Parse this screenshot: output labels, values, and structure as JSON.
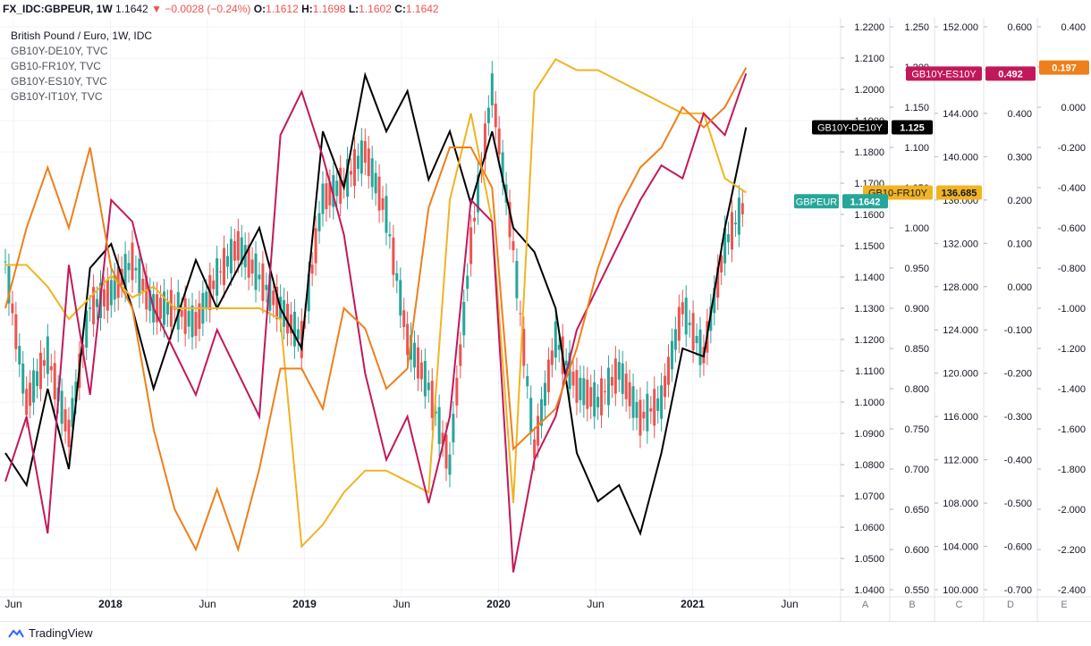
{
  "header": {
    "symbol": "FX_IDC:GBPEUR, 1W",
    "last": "1.1642",
    "change": "−0.0028 (−0.24%)",
    "o_label": "O:",
    "o_value": "1.1612",
    "h_label": "H:",
    "h_value": "1.1698",
    "l_label": "L:",
    "l_value": "1.1602",
    "c_label": "C:",
    "c_value": "1.1642"
  },
  "legend": [
    "British Pound / Euro, 1W, IDC",
    "GB10Y-DE10Y, TVC",
    "GB10-FR10Y, TVC",
    "GB10Y-ES10Y, TVC",
    "GB10Y-IT10Y, TVC"
  ],
  "footer": {
    "brand": "TradingView"
  },
  "colors": {
    "up": "#26a69a",
    "down": "#ef5350",
    "de": "#000000",
    "fr": "#f0b423",
    "es": "#c2185b",
    "it": "#ef7f1a",
    "grid": "#f0f3fa"
  },
  "chart_data": {
    "type": "line",
    "x_axis_labels": [
      "Jun",
      "2018",
      "Jun",
      "2019",
      "Jun",
      "2020",
      "Jun",
      "2021",
      "Jun"
    ],
    "axes": [
      {
        "id": "A",
        "ticks": [
          "1.2200",
          "1.2100",
          "1.2000",
          "1.1900",
          "1.1800",
          "1.1700",
          "1.1600",
          "1.1500",
          "1.1400",
          "1.1300",
          "1.1200",
          "1.1100",
          "1.1000",
          "1.0900",
          "1.0800",
          "1.0700",
          "1.0600",
          "1.0500",
          "1.0400"
        ],
        "range": [
          1.04,
          1.22
        ]
      },
      {
        "id": "B",
        "ticks": [
          "1.250",
          "1.200",
          "1.150",
          "1.100",
          "1.050",
          "1.000",
          "0.950",
          "0.900",
          "0.850",
          "0.800",
          "0.750",
          "0.700",
          "0.650",
          "0.600",
          "0.550"
        ],
        "range": [
          0.55,
          1.25
        ]
      },
      {
        "id": "C",
        "ticks": [
          "152.000",
          "148.000",
          "144.000",
          "140.000",
          "136.000",
          "132.000",
          "128.000",
          "124.000",
          "120.000",
          "116.000",
          "112.000",
          "108.000",
          "104.000",
          "100.000"
        ],
        "range": [
          100.0,
          152.0
        ]
      },
      {
        "id": "D",
        "ticks": [
          "0.600",
          "0.500",
          "0.400",
          "0.300",
          "0.200",
          "0.100",
          "0.000",
          "-0.100",
          "-0.200",
          "-0.300",
          "-0.400",
          "-0.500",
          "-0.600",
          "-0.700"
        ],
        "range": [
          -0.7,
          0.6
        ]
      },
      {
        "id": "E",
        "ticks": [
          "0.400",
          "0.200",
          "0.000",
          "-0.200",
          "-0.400",
          "-0.600",
          "-0.800",
          "-1.000",
          "-1.200",
          "-1.400",
          "-1.600",
          "-1.800",
          "-2.000",
          "-2.200",
          "-2.400"
        ],
        "range": [
          -2.4,
          0.4
        ]
      }
    ],
    "price_tags": [
      {
        "label": "GB10Y-ES10Y",
        "value": "0.492",
        "color": "#c2185b",
        "axis": "D",
        "y": 0.492
      },
      {
        "label": "",
        "value": "0.197",
        "color": "#ef7f1a",
        "axis": "E",
        "y": 0.197
      },
      {
        "label": "GB10Y-DE10Y",
        "value": "1.125",
        "color": "#000000",
        "axis": "B",
        "y": 1.125
      },
      {
        "label": "GB10-FR10Y",
        "value": "136.685",
        "color": "#f0b423",
        "axis": "C",
        "y": 136.685
      },
      {
        "label": "GBPEUR",
        "value": "1.1642",
        "color": "#26a69a",
        "axis": "A",
        "y": 1.1642
      }
    ],
    "series": [
      {
        "name": "GB10Y-DE10Y",
        "axis": "B",
        "color": "#000000",
        "x": [
          0,
          6,
          12,
          18,
          24,
          30,
          36,
          42,
          48,
          54,
          60,
          66,
          72,
          78,
          84,
          90,
          96,
          102,
          108,
          114,
          120,
          126,
          132,
          138,
          144,
          150,
          156,
          162,
          168,
          174,
          180,
          186,
          192,
          198,
          204,
          210
        ],
        "y": [
          0.72,
          0.68,
          0.8,
          0.7,
          0.95,
          0.98,
          0.9,
          0.8,
          0.88,
          0.96,
          0.9,
          0.95,
          1.0,
          0.9,
          0.85,
          1.12,
          1.05,
          1.19,
          1.12,
          1.17,
          1.06,
          1.12,
          1.03,
          1.12,
          1.0,
          0.97,
          0.9,
          0.72,
          0.66,
          0.68,
          0.62,
          0.72,
          0.85,
          0.84,
          1.0,
          1.125
        ]
      },
      {
        "name": "GB10-FR10Y",
        "axis": "C",
        "color": "#f0b423",
        "x": [
          0,
          6,
          12,
          18,
          24,
          30,
          36,
          42,
          48,
          54,
          60,
          66,
          72,
          78,
          84,
          90,
          96,
          102,
          108,
          114,
          120,
          126,
          132,
          138,
          144,
          150,
          156,
          162,
          168,
          174,
          180,
          186,
          192,
          198,
          204,
          210
        ],
        "y": [
          130,
          130,
          128,
          125,
          127,
          129,
          127,
          128,
          126,
          126,
          126,
          126,
          126,
          125,
          104,
          106,
          109,
          111,
          111,
          110,
          109,
          136,
          144,
          134,
          108,
          146,
          149,
          148,
          148,
          147,
          146,
          145,
          144,
          144,
          138,
          136.685
        ]
      },
      {
        "name": "GB10Y-ES10Y",
        "axis": "D",
        "color": "#c2185b",
        "x": [
          0,
          6,
          12,
          18,
          24,
          30,
          36,
          42,
          48,
          54,
          60,
          66,
          72,
          78,
          84,
          90,
          96,
          102,
          108,
          114,
          120,
          126,
          132,
          138,
          144,
          150,
          156,
          162,
          168,
          174,
          180,
          186,
          192,
          198,
          204,
          210
        ],
        "y": [
          -0.45,
          -0.3,
          -0.57,
          0.05,
          -0.25,
          0.2,
          0.15,
          -0.05,
          -0.15,
          -0.25,
          -0.1,
          -0.2,
          -0.3,
          0.35,
          0.45,
          0.3,
          0.12,
          -0.2,
          -0.4,
          -0.3,
          -0.5,
          -0.3,
          0.2,
          0.15,
          -0.66,
          -0.4,
          -0.3,
          -0.1,
          0.0,
          0.1,
          0.2,
          0.28,
          0.25,
          0.4,
          0.35,
          0.492
        ]
      },
      {
        "name": "GB10Y-IT10Y",
        "axis": "E",
        "color": "#ef7f1a",
        "x": [
          0,
          6,
          12,
          18,
          24,
          30,
          36,
          42,
          48,
          54,
          60,
          66,
          72,
          78,
          84,
          90,
          96,
          102,
          108,
          114,
          120,
          126,
          132,
          138,
          144,
          150,
          156,
          162,
          168,
          174,
          180,
          186,
          192,
          198,
          204,
          210
        ],
        "y": [
          -1.0,
          -0.6,
          -0.3,
          -0.6,
          -0.2,
          -0.8,
          -1.0,
          -1.6,
          -2.0,
          -2.2,
          -1.9,
          -2.2,
          -1.8,
          -1.3,
          -1.3,
          -1.5,
          -1.0,
          -1.1,
          -1.4,
          -1.3,
          -0.5,
          -0.2,
          -0.2,
          -0.4,
          -1.7,
          -1.6,
          -1.5,
          -1.2,
          -0.8,
          -0.5,
          -0.3,
          -0.2,
          0.0,
          -0.1,
          0.0,
          0.197
        ]
      },
      {
        "name": "GBPEUR",
        "axis": "A",
        "color": "#26a69a",
        "x": [
          0,
          6,
          12,
          18,
          24,
          30,
          36,
          42,
          48,
          54,
          60,
          66,
          72,
          78,
          84,
          90,
          96,
          102,
          108,
          114,
          120,
          126,
          132,
          138,
          144,
          150,
          156,
          162,
          168,
          174,
          180,
          186,
          192,
          198,
          204,
          210
        ],
        "y": [
          1.145,
          1.1,
          1.115,
          1.09,
          1.13,
          1.135,
          1.145,
          1.13,
          1.13,
          1.125,
          1.14,
          1.15,
          1.14,
          1.13,
          1.12,
          1.165,
          1.17,
          1.18,
          1.16,
          1.12,
          1.105,
          1.08,
          1.15,
          1.2,
          1.15,
          1.085,
          1.12,
          1.105,
          1.1,
          1.11,
          1.095,
          1.1,
          1.13,
          1.115,
          1.15,
          1.1642
        ]
      }
    ]
  }
}
